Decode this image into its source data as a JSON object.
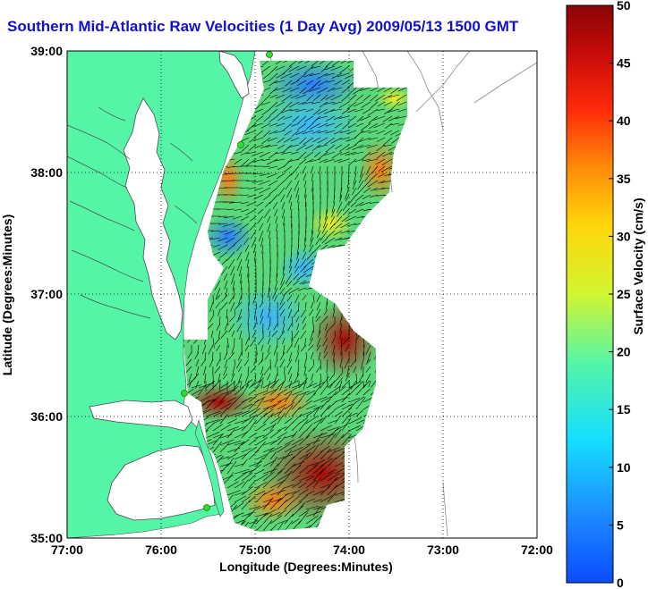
{
  "title": "Southern Mid-Atlantic Raw Velocities (1 Day Avg) 2009/05/13 1500 GMT",
  "map": {
    "xlabel": "Longitude (Degrees:Minutes)",
    "ylabel": "Latitude (Degrees:Minutes)",
    "x_ticks": [
      "77:00",
      "76:00",
      "75:00",
      "74:00",
      "73:00",
      "72:00"
    ],
    "y_ticks": [
      "39:00",
      "38:00",
      "37:00",
      "36:00",
      "35:00"
    ],
    "lon_range": [
      -77,
      -72
    ],
    "lat_range": [
      35,
      39
    ],
    "grid": "dotted",
    "land_color": "#55f5a8"
  },
  "colorbar": {
    "label": "Surface Velocity (cm/s)",
    "ticks": [
      "50",
      "45",
      "40",
      "35",
      "30",
      "25",
      "20",
      "15",
      "10",
      "5",
      "0"
    ],
    "range": [
      0,
      50
    ],
    "colormap": "jet"
  },
  "chart_data": {
    "type": "heatmap",
    "title": "Southern Mid-Atlantic Raw Velocities (1 Day Avg) 2009/05/13 1500 GMT",
    "xlabel": "Longitude (Degrees:Minutes)",
    "ylabel": "Latitude (Degrees:Minutes)",
    "xlim": [
      -77,
      -72
    ],
    "ylim": [
      35,
      39
    ],
    "colorbar_label": "Surface Velocity (cm/s)",
    "colorbar_range": [
      0,
      50
    ],
    "regions": [
      {
        "lon": -74.5,
        "lat": 38.8,
        "speed": 8
      },
      {
        "lon": -74.2,
        "lat": 38.2,
        "speed": 15
      },
      {
        "lon": -74.7,
        "lat": 37.6,
        "speed": 18
      },
      {
        "lon": -75.1,
        "lat": 37.3,
        "speed": 10
      },
      {
        "lon": -74.8,
        "lat": 36.7,
        "speed": 12
      },
      {
        "lon": -75.1,
        "lat": 36.1,
        "speed": 42
      },
      {
        "lon": -74.2,
        "lat": 36.6,
        "speed": 48
      },
      {
        "lon": -74.4,
        "lat": 35.5,
        "speed": 50
      },
      {
        "lon": -73.8,
        "lat": 37.8,
        "speed": 35
      },
      {
        "lon": -75.4,
        "lat": 37.6,
        "speed": 12
      }
    ]
  }
}
